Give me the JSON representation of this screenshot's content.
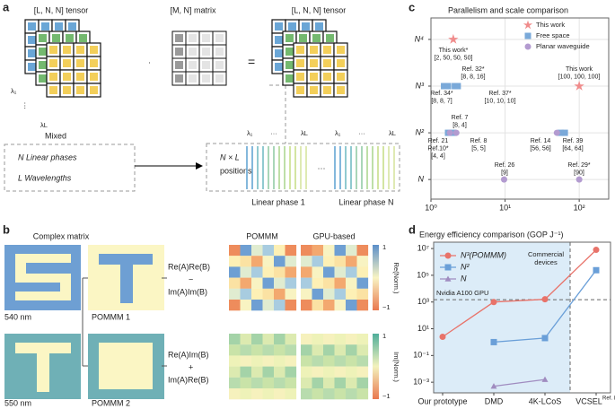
{
  "panel_a": {
    "label": "a",
    "tensor_in": "[L, N, N] tensor",
    "matrix": "[M, N] matrix",
    "tensor_out": "[L, N, N] tensor",
    "dot": "·",
    "equals": "=",
    "lambda_first": "λ₁",
    "lambda_dots": "⋮",
    "lambda_last": "λL",
    "mixed": "Mixed",
    "linear_phases": "N Linear phases",
    "wavelengths": "L Wavelengths",
    "positions_1": "N × L",
    "positions_2": "positions",
    "group_lambda_first": "λ₁",
    "group_lambda_dots": "···",
    "group_lambda_last": "λL",
    "between_groups": "···",
    "phase_first": "Linear phase 1",
    "phase_last": "Linear phase N"
  },
  "panel_b": {
    "label": "b",
    "complex_matrix": "Complex matrix",
    "wl_1": "540 nm",
    "wl_2": "550 nm",
    "pommm_1": "POMMM 1",
    "pommm_2": "POMMM 2",
    "re_terms": [
      "Re(A)Re(B)",
      "−",
      "Im(A)Im(B)"
    ],
    "im_terms": [
      "Re(A)Im(B)",
      "+",
      "Im(A)Re(B)"
    ],
    "col_pommm": "POMMM",
    "col_gpu": "GPU-based",
    "colorbar_re": "Re(Norm.)",
    "colorbar_im": "Im(Norm.)",
    "colorbar_max": "1",
    "colorbar_min": "−1"
  },
  "panel_labels": {
    "c": "c",
    "d": "d"
  },
  "chart_data": [
    {
      "type": "scatter",
      "title": "Parallelism and scale comparison",
      "xlog": true,
      "xlim": [
        1,
        250
      ],
      "xticks": [
        {
          "value": 1,
          "label": "10⁰"
        },
        {
          "value": 10,
          "label": "10¹"
        },
        {
          "value": 100,
          "label": "10²"
        }
      ],
      "ylim": [
        0.58,
        4.46
      ],
      "yticks": [
        {
          "value": 1,
          "label": "N"
        },
        {
          "value": 2,
          "label": "N²"
        },
        {
          "value": 3,
          "label": "N³"
        },
        {
          "value": 4,
          "label": "N⁴"
        }
      ],
      "grid": true,
      "legend": "upper right",
      "series": [
        {
          "name": "This work",
          "color": "#f08c8c",
          "marker": "star",
          "x": [
            2,
            100
          ],
          "values": [
            4,
            3
          ]
        },
        {
          "name": "Free space",
          "color": "#7aa9d9",
          "marker": "square",
          "x": [
            1.5,
            1.7,
            2.1,
            2.3,
            1.7,
            2.0,
            56,
            64
          ],
          "values": [
            3,
            3,
            3,
            3,
            2,
            2,
            2,
            2
          ]
        },
        {
          "name": "Planar waveguide",
          "color": "#b39bd0",
          "marker": "circle",
          "x": [
            1.8,
            2.2,
            50,
            9.7,
            100
          ],
          "values": [
            2,
            2,
            2,
            1,
            1
          ]
        }
      ],
      "annotations": [
        {
          "lines": [
            "This work*",
            "[2, 50, 50, 50]"
          ]
        },
        {
          "lines": [
            "Ref. 32*",
            "[8, 8, 16]"
          ]
        },
        {
          "lines": [
            "Ref. 34*",
            "[8, 8, 7]"
          ]
        },
        {
          "lines": [
            "Ref. 37*",
            "[10, 10, 10]"
          ]
        },
        {
          "lines": [
            "This work",
            "[100, 100, 100]"
          ]
        },
        {
          "lines": [
            "Ref. 7",
            "[8, 4]"
          ]
        },
        {
          "lines": [
            "Ref. 21",
            "Ref.10*",
            "[4, 4]"
          ]
        },
        {
          "lines": [
            "Ref. 8",
            "[5, 5]"
          ]
        },
        {
          "lines": [
            "Ref. 14",
            "[56, 56]"
          ]
        },
        {
          "lines": [
            "Ref. 39",
            "[64, 64]"
          ]
        },
        {
          "lines": [
            "Ref. 26",
            "[9]"
          ]
        },
        {
          "lines": [
            "Ref. 29*",
            "[90]"
          ]
        }
      ]
    },
    {
      "type": "line",
      "title": "Energy efficiency comparison (GOP J⁻¹)",
      "ylog": true,
      "categories": [
        "Our prototype",
        "DMD",
        "4K-LCoS",
        "VCSEL"
      ],
      "category_note": "Ref. 8",
      "ylim": [
        0.00016,
        30000000
      ],
      "yticks": [
        {
          "value": 0.001,
          "label": "10⁻³"
        },
        {
          "value": 0.1,
          "label": "10⁻¹"
        },
        {
          "value": 10,
          "label": "10¹"
        },
        {
          "value": 1000,
          "label": "10³"
        },
        {
          "value": 100000,
          "label": "10⁵"
        },
        {
          "value": 10000000,
          "label": "10⁷"
        }
      ],
      "legend": "upper left",
      "series": [
        {
          "name": "N³(POMMM)",
          "color": "#e8736a",
          "marker": "circle",
          "values": [
            2.5,
            1000,
            1600,
            8000000
          ]
        },
        {
          "name": "N²",
          "color": "#6a9fd8",
          "marker": "square",
          "values": [
            null,
            1,
            2,
            240000
          ]
        },
        {
          "name": "N",
          "color": "#a08cc0",
          "marker": "triangle",
          "values": [
            null,
            0.0005,
            0.0016,
            null
          ]
        }
      ],
      "reference_line": {
        "label": "Nvidia A100 GPU",
        "value": 1500
      },
      "shaded_region": {
        "label": [
          "Commercial",
          "devices"
        ]
      }
    }
  ]
}
